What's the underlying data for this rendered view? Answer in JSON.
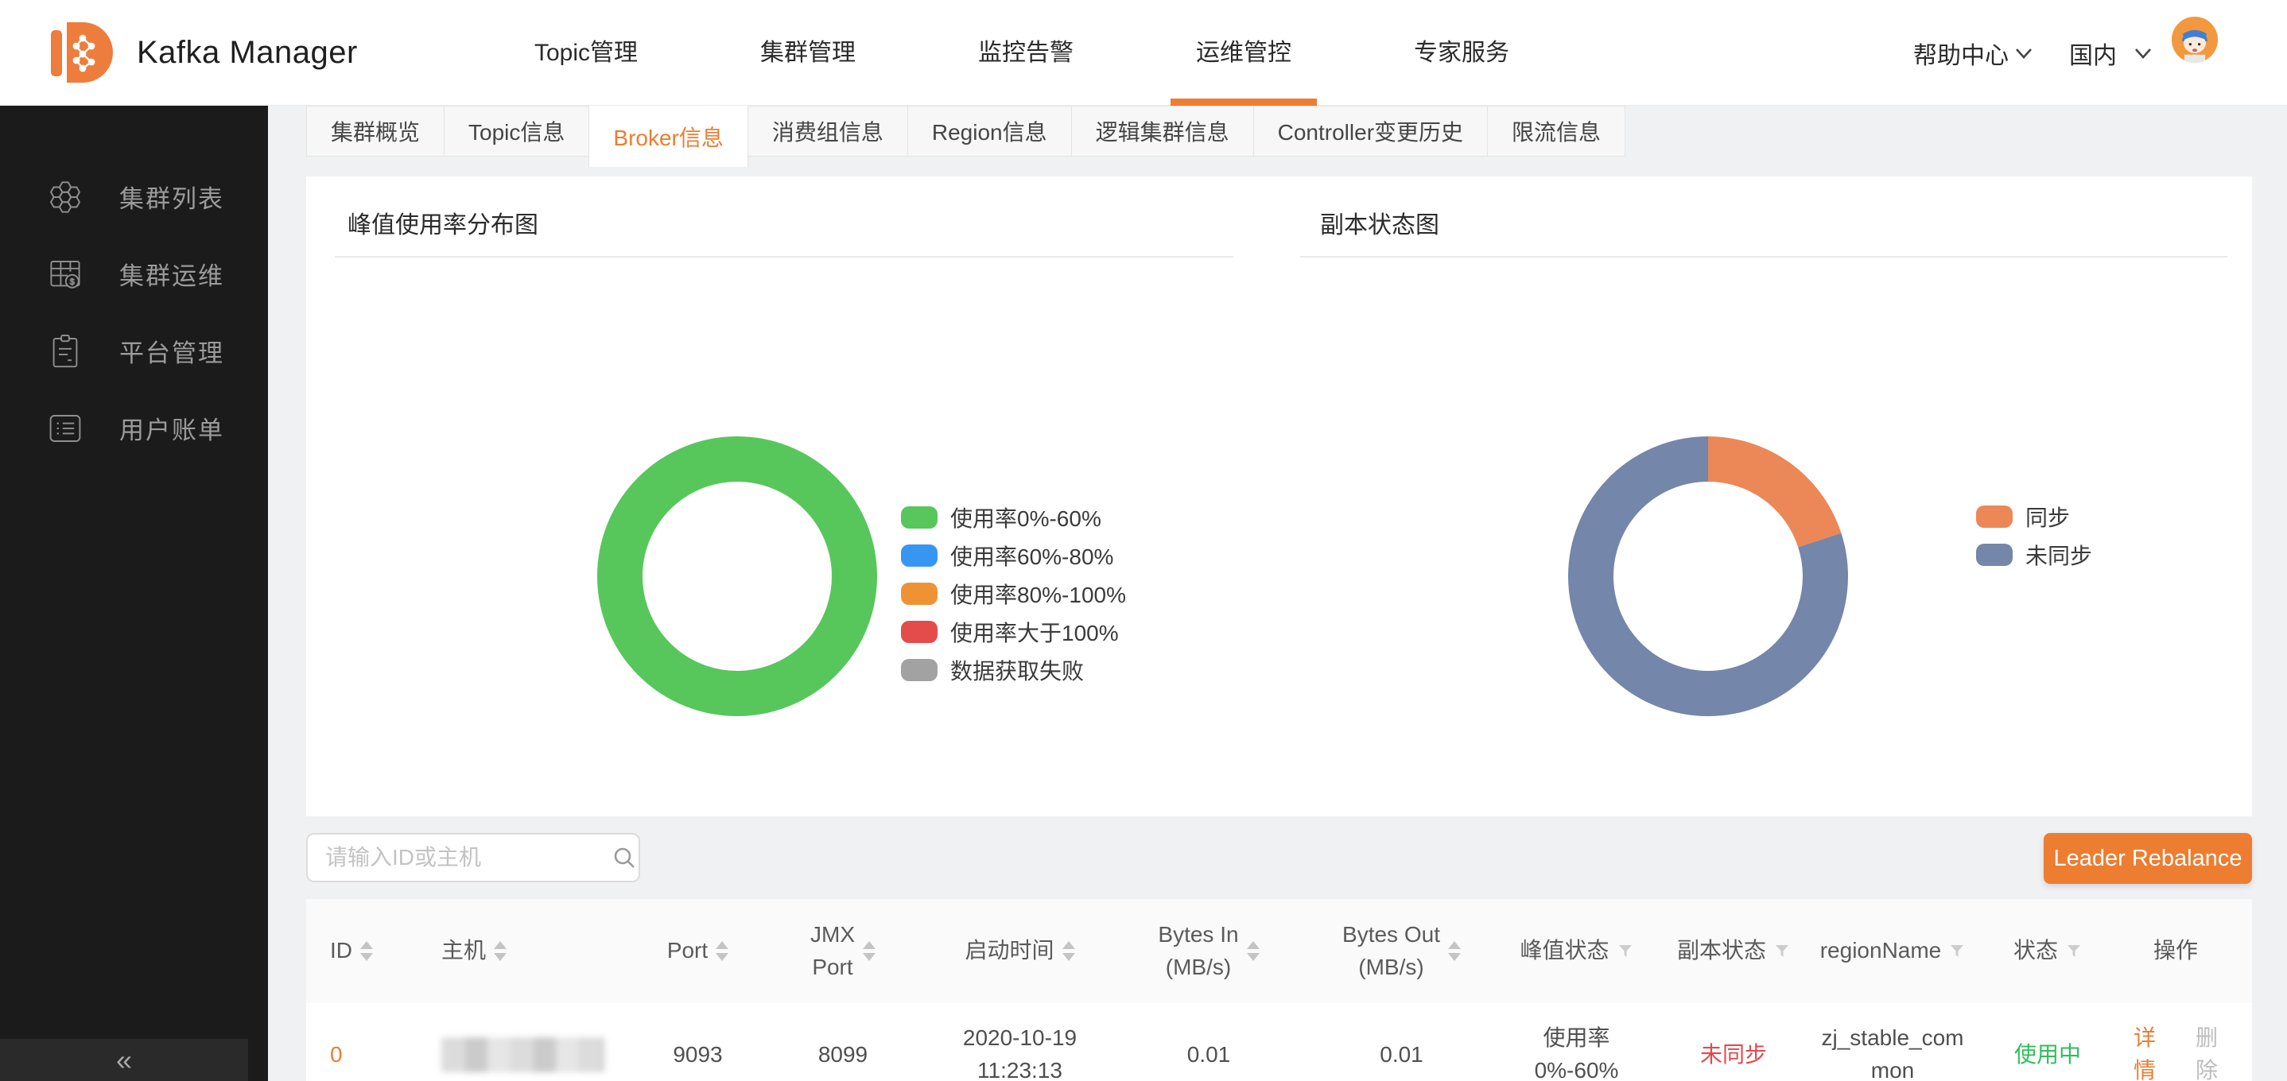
{
  "navbar": {
    "title": "Kafka Manager",
    "menu": [
      {
        "label": "Topic管理",
        "active": false
      },
      {
        "label": "集群管理",
        "active": false
      },
      {
        "label": "监控告警",
        "active": false
      },
      {
        "label": "运维管控",
        "active": true
      },
      {
        "label": "专家服务",
        "active": false
      }
    ],
    "help_label": "帮助中心",
    "region_label": "国内"
  },
  "sidebar": {
    "items": [
      {
        "label": "集群列表",
        "icon": "cluster-honeycomb-icon"
      },
      {
        "label": "集群运维",
        "icon": "ops-billing-icon"
      },
      {
        "label": "平台管理",
        "icon": "clipboard-icon"
      },
      {
        "label": "用户账单",
        "icon": "bill-list-icon"
      }
    ],
    "collapse_icon": "«"
  },
  "tabs": [
    {
      "label": "集群概览",
      "active": false
    },
    {
      "label": "Topic信息",
      "active": false
    },
    {
      "label": "Broker信息",
      "active": true
    },
    {
      "label": "消费组信息",
      "active": false
    },
    {
      "label": "Region信息",
      "active": false
    },
    {
      "label": "逻辑集群信息",
      "active": false
    },
    {
      "label": "Controller变更历史",
      "active": false
    },
    {
      "label": "限流信息",
      "active": false
    }
  ],
  "chart_data": [
    {
      "type": "pie",
      "donut": true,
      "title": "峰值使用率分布图",
      "labels": [
        "使用率0%-60%",
        "使用率60%-80%",
        "使用率80%-100%",
        "使用率大于100%",
        "数据获取失败"
      ],
      "values": [
        100,
        0,
        0,
        0,
        0
      ],
      "colors": [
        "#57c75c",
        "#3896f3",
        "#ef9235",
        "#e44c4c",
        "#a2a2a2"
      ],
      "legend_position": "right"
    },
    {
      "type": "pie",
      "donut": true,
      "title": "副本状态图",
      "labels": [
        "同步",
        "未同步"
      ],
      "values": [
        20,
        80
      ],
      "colors": [
        "#ec8757",
        "#7486a9"
      ],
      "legend_position": "right"
    }
  ],
  "controls": {
    "search_placeholder": "请输入ID或主机",
    "rebalance_button": "Leader Rebalance"
  },
  "table": {
    "columns": [
      {
        "key": "id",
        "label": "ID",
        "icon": "sort"
      },
      {
        "key": "host",
        "label": "主机",
        "icon": "sort"
      },
      {
        "key": "port",
        "label": "Port",
        "icon": "sort"
      },
      {
        "key": "jmx_port",
        "label": "JMX\nPort",
        "icon": "sort"
      },
      {
        "key": "start_time",
        "label": "启动时间",
        "icon": "sort"
      },
      {
        "key": "bytes_in",
        "label": "Bytes In\n(MB/s)",
        "icon": "sort"
      },
      {
        "key": "bytes_out",
        "label": "Bytes Out\n(MB/s)",
        "icon": "sort"
      },
      {
        "key": "peak_status",
        "label": "峰值状态",
        "icon": "filter"
      },
      {
        "key": "replica_status",
        "label": "副本状态",
        "icon": "filter"
      },
      {
        "key": "region_name",
        "label": "regionName",
        "icon": "filter"
      },
      {
        "key": "status",
        "label": "状态",
        "icon": "filter"
      },
      {
        "key": "actions",
        "label": "操作",
        "icon": "none"
      }
    ],
    "rows": [
      {
        "id": "0",
        "host_redacted": true,
        "port": "9093",
        "jmx_port": "8099",
        "start_time": "2020-10-19\n11:23:13",
        "bytes_in": "0.01",
        "bytes_out": "0.01",
        "peak_status": "使用率\n0%-60%",
        "replica_status": "未同步",
        "region_name": "zj_stable_common",
        "status": "使用中",
        "action_detail": "详情",
        "action_delete": "删除"
      }
    ]
  },
  "colors": {
    "brand_orange": "#ed7d31",
    "sidebar_bg": "#1b1b1b",
    "page_bg": "#f0f1f3",
    "replica_unsynced_text": "#e2484d",
    "status_inuse_text": "#2fbf5b"
  }
}
